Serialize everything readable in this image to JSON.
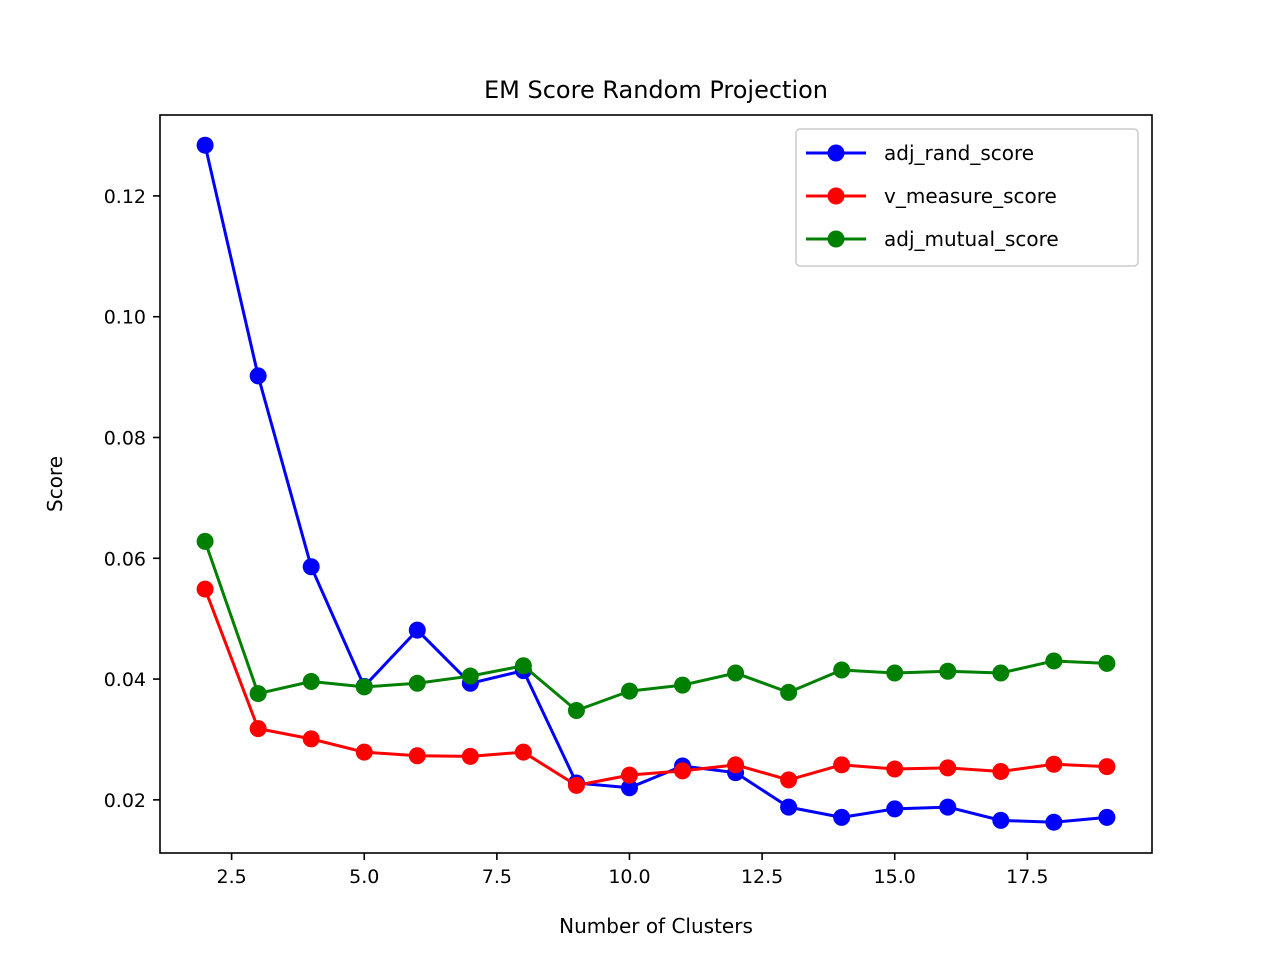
{
  "chart_data": {
    "type": "line",
    "title": "EM Score Random Projection",
    "xlabel": "Number of Clusters",
    "ylabel": "Score",
    "xlim": [
      1.15,
      19.85
    ],
    "ylim": [
      0.0112,
      0.1334
    ],
    "xticks": [
      2.5,
      5.0,
      7.5,
      10.0,
      12.5,
      15.0,
      17.5
    ],
    "xtick_labels": [
      "2.5",
      "5.0",
      "7.5",
      "10.0",
      "12.5",
      "15.0",
      "17.5"
    ],
    "yticks": [
      0.02,
      0.04,
      0.06,
      0.08,
      0.1,
      0.12
    ],
    "ytick_labels": [
      "0.02",
      "0.04",
      "0.06",
      "0.08",
      "0.10",
      "0.12"
    ],
    "grid": false,
    "legend_position": "top-right",
    "x": [
      2,
      3,
      4,
      5,
      6,
      7,
      8,
      9,
      10,
      11,
      12,
      13,
      14,
      15,
      16,
      17,
      18,
      19
    ],
    "series": [
      {
        "name": "adj_rand_score",
        "color": "#0000ff",
        "values": [
          0.1284,
          0.0902,
          0.0586,
          0.0388,
          0.0481,
          0.0393,
          0.0414,
          0.0228,
          0.022,
          0.0256,
          0.0245,
          0.0188,
          0.0171,
          0.0185,
          0.0188,
          0.0166,
          0.0163,
          0.0171
        ]
      },
      {
        "name": "v_measure_score",
        "color": "#ff0000",
        "values": [
          0.0549,
          0.0318,
          0.0301,
          0.0279,
          0.0273,
          0.0272,
          0.0279,
          0.0224,
          0.0241,
          0.0248,
          0.0258,
          0.0233,
          0.0258,
          0.0251,
          0.0253,
          0.0247,
          0.0259,
          0.0255
        ]
      },
      {
        "name": "adj_mutual_score",
        "color": "#008000",
        "values": [
          0.0628,
          0.0376,
          0.0396,
          0.0387,
          0.0393,
          0.0405,
          0.0422,
          0.0348,
          0.038,
          0.039,
          0.041,
          0.0378,
          0.0415,
          0.041,
          0.0413,
          0.041,
          0.043,
          0.0426
        ]
      }
    ]
  }
}
